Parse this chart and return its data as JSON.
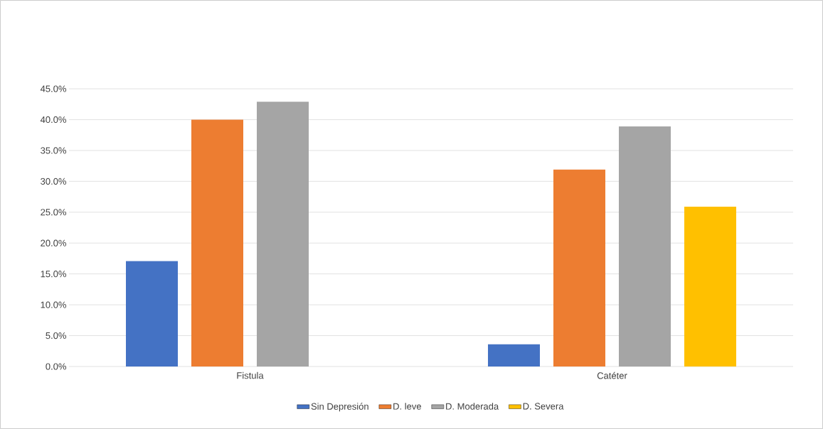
{
  "chart_data": {
    "type": "bar",
    "categories": [
      "Fistula",
      "Catéter"
    ],
    "series": [
      {
        "name": "Sin Depresión",
        "color": "#4472c4",
        "values": [
          17.1,
          3.6
        ]
      },
      {
        "name": "D. leve",
        "color": "#ed7d31",
        "values": [
          40.0,
          31.9
        ]
      },
      {
        "name": "D. Moderada",
        "color": "#a5a5a5",
        "values": [
          42.9,
          38.9
        ]
      },
      {
        "name": "D. Severa",
        "color": "#ffc000",
        "values": [
          0,
          25.9
        ]
      }
    ],
    "ylim": [
      0,
      45
    ],
    "yticks": [
      {
        "value": 0,
        "label": "0.0%"
      },
      {
        "value": 5,
        "label": "5.0%"
      },
      {
        "value": 10,
        "label": "10.0%"
      },
      {
        "value": 15,
        "label": "15.0%"
      },
      {
        "value": 20,
        "label": "20.0%"
      },
      {
        "value": 25,
        "label": "25.0%"
      },
      {
        "value": 30,
        "label": "30.0%"
      },
      {
        "value": 35,
        "label": "35.0%"
      },
      {
        "value": 40,
        "label": "40.0%"
      },
      {
        "value": 45,
        "label": "45.0%"
      }
    ],
    "grid": "y",
    "legend": "bottom"
  }
}
